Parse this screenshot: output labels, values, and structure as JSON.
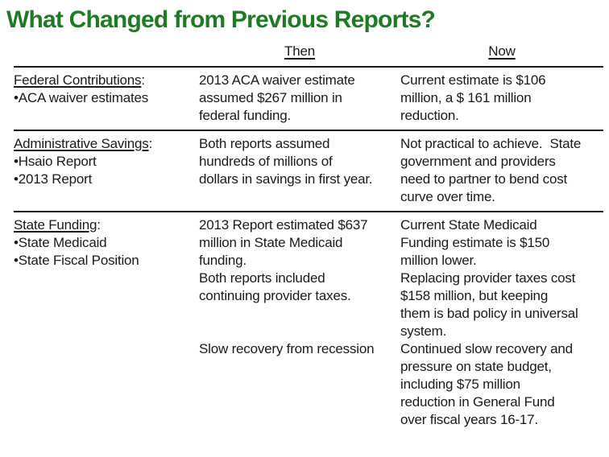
{
  "slide": {
    "title": "What Changed from Previous Reports?",
    "title_color": "#1e7b24",
    "text_color": "#1a1a1a",
    "colon": ":",
    "columns": {
      "then": "Then",
      "now": "Now"
    },
    "rows": [
      {
        "category": "Federal Contributions",
        "bullets": [
          "•ACA waiver estimates"
        ],
        "then": [
          "2013 ACA waiver estimate\nassumed $267 million in\nfederal funding."
        ],
        "now": [
          "Current estimate is $106\nmillion, a $ 161 million\nreduction."
        ]
      },
      {
        "category": "Administrative Savings",
        "bullets": [
          "•Hsaio Report",
          "•2013 Report"
        ],
        "then": [
          "Both reports assumed\nhundreds of millions of\ndollars in savings in first year."
        ],
        "now": [
          "Not practical to achieve.  State\ngovernment and providers\nneed to partner to bend cost\ncurve over time."
        ]
      },
      {
        "category": "State Funding",
        "bullets": [
          "•State Medicaid",
          "•State Fiscal Position"
        ],
        "then": [
          "2013 Report estimated $637\nmillion in State Medicaid\nfunding.",
          "Both reports included\ncontinuing provider taxes.",
          "Slow recovery from recession"
        ],
        "now": [
          "Current State Medicaid\nFunding estimate is $150\nmillion lower.",
          "Replacing provider taxes cost\n$158 million, but keeping\nthem is bad policy in universal\nsystem.",
          "Continued slow recovery and\npressure on state budget,\nincluding $75 million\nreduction in General Fund\nover fiscal years 16-17."
        ]
      }
    ]
  }
}
